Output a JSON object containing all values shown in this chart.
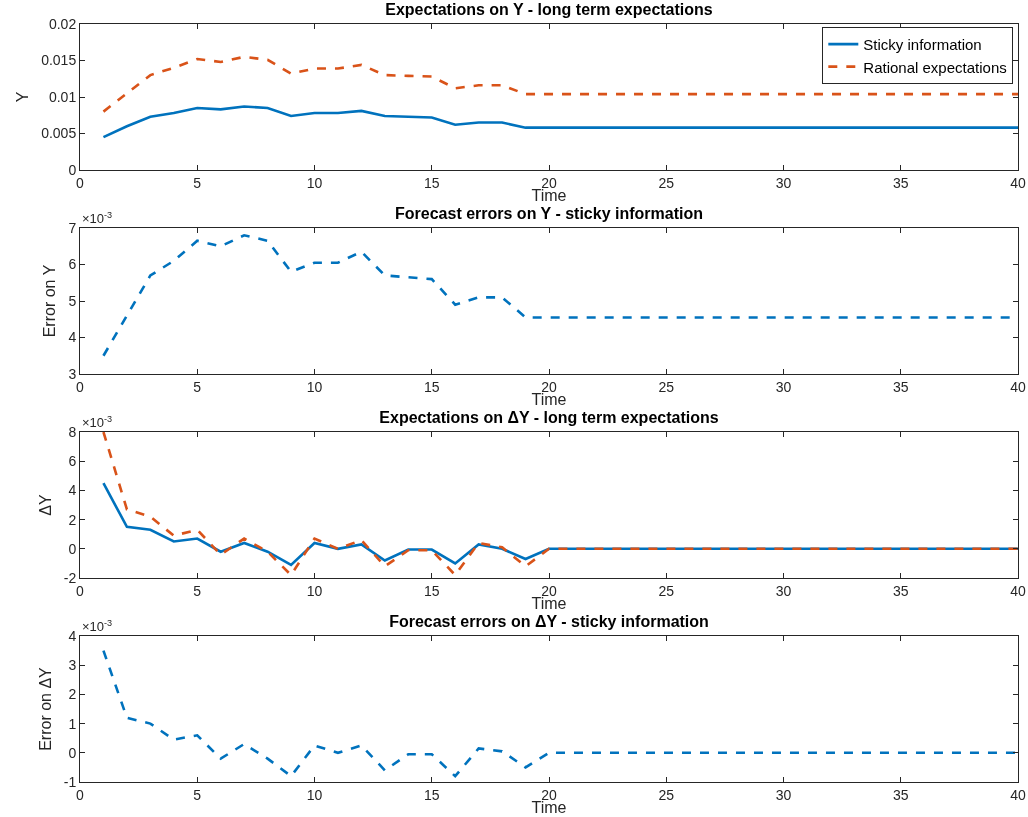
{
  "chart_data": [
    {
      "type": "line",
      "title": "Expectations on Y - long term expectations",
      "xlabel": "Time",
      "ylabel": "Y",
      "x": [
        1,
        2,
        3,
        4,
        5,
        6,
        7,
        8,
        9,
        10,
        11,
        12,
        13,
        14,
        15,
        16,
        17,
        18,
        19,
        20,
        21,
        22,
        23,
        24,
        25,
        26,
        27,
        28,
        29,
        30,
        31,
        32,
        33,
        34,
        35,
        36,
        37,
        38,
        39,
        40
      ],
      "xlim": [
        0,
        40
      ],
      "xticks": [
        0,
        5,
        10,
        15,
        20,
        25,
        30,
        35,
        40
      ],
      "ylim": [
        0,
        0.02
      ],
      "yticks": [
        0,
        0.005,
        0.01,
        0.015,
        0.02
      ],
      "legend": "top right",
      "grid": false,
      "series": [
        {
          "name": "Sticky information",
          "color": "#0072bd",
          "line_style": "solid",
          "values": [
            0.0045,
            0.006,
            0.0073,
            0.0078,
            0.0085,
            0.0083,
            0.0087,
            0.0085,
            0.0074,
            0.0078,
            0.0078,
            0.0081,
            0.0074,
            0.0073,
            0.0072,
            0.0062,
            0.0065,
            0.0065,
            0.0058,
            0.0058,
            0.0058,
            0.0058,
            0.0058,
            0.0058,
            0.0058,
            0.0058,
            0.0058,
            0.0058,
            0.0058,
            0.0058,
            0.0058,
            0.0058,
            0.0058,
            0.0058,
            0.0058,
            0.0058,
            0.0058,
            0.0058,
            0.0058,
            0.0058
          ]
        },
        {
          "name": "Rational expectations",
          "color": "#d95319",
          "line_style": "dashed",
          "values": [
            0.008,
            0.0105,
            0.013,
            0.014,
            0.0152,
            0.0148,
            0.0155,
            0.0151,
            0.0132,
            0.0139,
            0.0139,
            0.0144,
            0.013,
            0.0129,
            0.0128,
            0.0112,
            0.0116,
            0.0116,
            0.0104,
            0.0104,
            0.0104,
            0.0104,
            0.0104,
            0.0104,
            0.0104,
            0.0104,
            0.0104,
            0.0104,
            0.0104,
            0.0104,
            0.0104,
            0.0104,
            0.0104,
            0.0104,
            0.0104,
            0.0104,
            0.0104,
            0.0104,
            0.0104,
            0.0104
          ]
        }
      ]
    },
    {
      "type": "line",
      "title": "Forecast errors on Y - sticky information",
      "xlabel": "Time",
      "ylabel": "Error on Y",
      "annotations": [
        "×10$^{-3}$"
      ],
      "x": [
        1,
        2,
        3,
        4,
        5,
        6,
        7,
        8,
        9,
        10,
        11,
        12,
        13,
        14,
        15,
        16,
        17,
        18,
        19,
        20,
        21,
        22,
        23,
        24,
        25,
        26,
        27,
        28,
        29,
        30,
        31,
        32,
        33,
        34,
        35,
        36,
        37,
        38,
        39,
        40
      ],
      "xlim": [
        0,
        40
      ],
      "xticks": [
        0,
        5,
        10,
        15,
        20,
        25,
        30,
        35,
        40
      ],
      "ylim": [
        3,
        7
      ],
      "yticks": [
        3,
        4,
        5,
        6,
        7
      ],
      "grid": false,
      "series": [
        {
          "color": "#0072bd",
          "line_style": "dashed",
          "values": [
            3.5,
            4.6,
            5.7,
            6.1,
            6.65,
            6.5,
            6.8,
            6.65,
            5.8,
            6.05,
            6.05,
            6.35,
            5.7,
            5.65,
            5.6,
            4.9,
            5.1,
            5.1,
            4.55,
            4.55,
            4.55,
            4.55,
            4.55,
            4.55,
            4.55,
            4.55,
            4.55,
            4.55,
            4.55,
            4.55,
            4.55,
            4.55,
            4.55,
            4.55,
            4.55,
            4.55,
            4.55,
            4.55,
            4.55,
            4.55
          ]
        }
      ]
    },
    {
      "type": "line",
      "title": "Expectations on ΔY - long term expectations",
      "xlabel": "Time",
      "ylabel": "ΔY",
      "annotations": [
        "×10$^{-3}$"
      ],
      "x": [
        1,
        2,
        3,
        4,
        5,
        6,
        7,
        8,
        9,
        10,
        11,
        12,
        13,
        14,
        15,
        16,
        17,
        18,
        19,
        20,
        21,
        22,
        23,
        24,
        25,
        26,
        27,
        28,
        29,
        30,
        31,
        32,
        33,
        34,
        35,
        36,
        37,
        38,
        39,
        40
      ],
      "xlim": [
        0,
        40
      ],
      "xticks": [
        0,
        5,
        10,
        15,
        20,
        25,
        30,
        35,
        40
      ],
      "ylim": [
        -2,
        8
      ],
      "yticks": [
        -2,
        0,
        2,
        4,
        6,
        8
      ],
      "grid": false,
      "series": [
        {
          "color": "#0072bd",
          "line_style": "solid",
          "values": [
            4.5,
            1.5,
            1.3,
            0.5,
            0.7,
            -0.2,
            0.4,
            -0.2,
            -1.1,
            0.4,
            0,
            0.3,
            -0.8,
            -0.05,
            -0.05,
            -1,
            0.3,
            0,
            -0.7,
            0,
            0,
            0,
            0,
            0,
            0,
            0,
            0,
            0,
            0,
            0,
            0,
            0,
            0,
            0,
            0,
            0,
            0,
            0,
            0,
            0
          ]
        },
        {
          "color": "#d95319",
          "line_style": "dashed",
          "values": [
            8,
            2.7,
            2.2,
            0.9,
            1.3,
            -0.4,
            0.7,
            -0.2,
            -1.8,
            0.7,
            0,
            0.6,
            -1.2,
            -0.1,
            -0.1,
            -1.8,
            0.4,
            0.1,
            -1.2,
            0,
            0,
            0,
            0,
            0,
            0,
            0,
            0,
            0,
            0,
            0,
            0,
            0,
            0,
            0,
            0,
            0,
            0,
            0,
            0,
            0
          ]
        }
      ]
    },
    {
      "type": "line",
      "title": "Forecast errors on ΔY - sticky information",
      "xlabel": "Time",
      "ylabel": "Error on ΔY",
      "annotations": [
        "×10$^{-3}$"
      ],
      "x": [
        1,
        2,
        3,
        4,
        5,
        6,
        7,
        8,
        9,
        10,
        11,
        12,
        13,
        14,
        15,
        16,
        17,
        18,
        19,
        20,
        21,
        22,
        23,
        24,
        25,
        26,
        27,
        28,
        29,
        30,
        31,
        32,
        33,
        34,
        35,
        36,
        37,
        38,
        39,
        40
      ],
      "xlim": [
        0,
        40
      ],
      "xticks": [
        0,
        5,
        10,
        15,
        20,
        25,
        30,
        35,
        40
      ],
      "ylim": [
        -1,
        4
      ],
      "yticks": [
        -1,
        0,
        1,
        2,
        3,
        4
      ],
      "grid": false,
      "series": [
        {
          "color": "#0072bd",
          "line_style": "dashed",
          "values": [
            3.5,
            1.2,
            1,
            0.45,
            0.6,
            -0.2,
            0.3,
            -0.2,
            -0.8,
            0.25,
            0,
            0.25,
            -0.6,
            -0.05,
            -0.05,
            -0.8,
            0.15,
            0.05,
            -0.5,
            0,
            0,
            0,
            0,
            0,
            0,
            0,
            0,
            0,
            0,
            0,
            0,
            0,
            0,
            0,
            0,
            0,
            0,
            0,
            0,
            0
          ]
        }
      ]
    }
  ]
}
